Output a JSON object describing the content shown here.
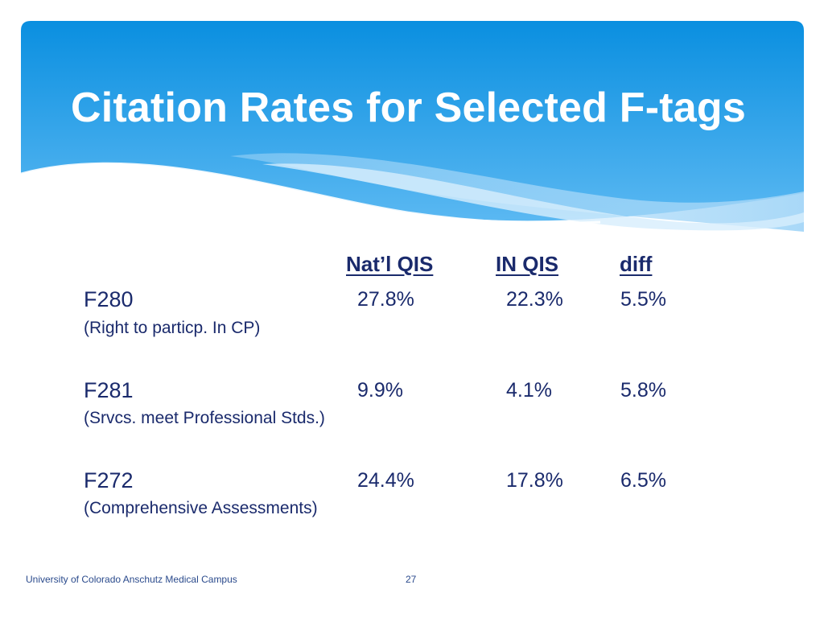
{
  "slide": {
    "title": "Citation Rates for Selected F-tags",
    "colors": {
      "banner_top": "#0a8fe0",
      "banner_bottom": "#5ab8f2",
      "text": "#1a2a6c"
    }
  },
  "table": {
    "columns": [
      "Nat’l QIS",
      "IN QIS",
      "diff"
    ],
    "rows": [
      {
        "tag": "F280",
        "description": "(Right to particp. In CP)",
        "natl": "27.8%",
        "in": "22.3%",
        "diff": "5.5%"
      },
      {
        "tag": "F281",
        "description": "(Srvcs. meet Professional Stds.)",
        "natl": "9.9%",
        "in": "4.1%",
        "diff": "5.8%"
      },
      {
        "tag": "F272",
        "description": "(Comprehensive Assessments)",
        "natl": "24.4%",
        "in": "17.8%",
        "diff": "6.5%"
      }
    ]
  },
  "footer": {
    "institution": "University of Colorado Anschutz Medical Campus",
    "page_number": "27"
  }
}
